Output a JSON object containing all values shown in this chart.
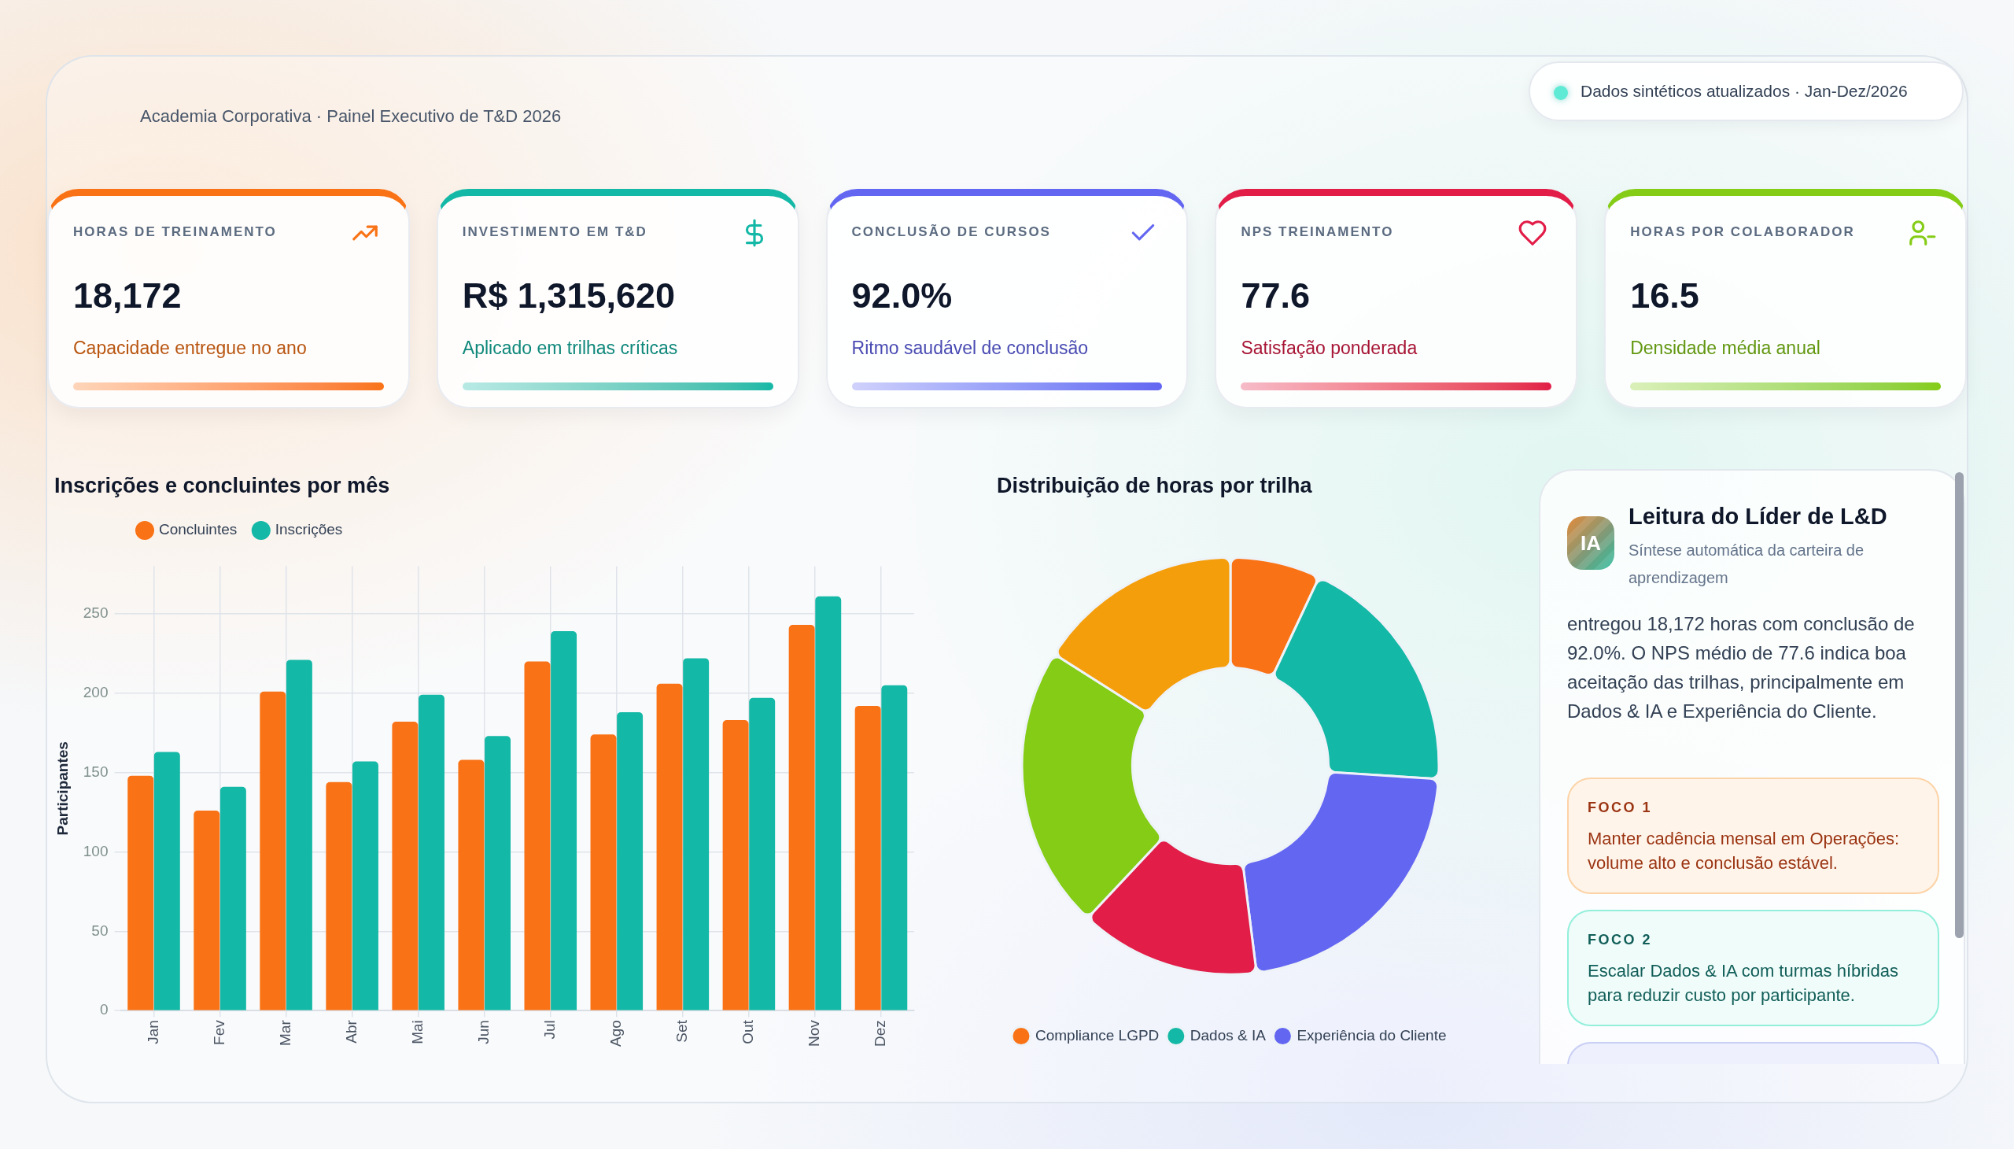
{
  "chart_data": [
    {
      "type": "other",
      "subtitle": "Academia Corporativa · Painel Executivo de T&D 2026",
      "categories": [
        "HORAS DE TREINAMENTO",
        "INVESTIMENTO EM T&D",
        "CONCLUSÃO DE CURSOS",
        "NPS TREINAMENTO",
        "HORAS POR COLABORADOR"
      ],
      "value_labels": [
        "18,172",
        "R$ 1,315,620",
        "92.0%",
        "77.6",
        "16.5"
      ],
      "colors": [
        "#f97316",
        "#14b8a6",
        "#6366f1",
        "#e11d48",
        "#84cc16"
      ],
      "annotations": [
        "Capacidade entregue no ano",
        "Aplicado em trilhas críticas",
        "Ritmo saudável de conclusão",
        "Satisfação ponderada",
        "Densidade média anual",
        "Dados sintéticos atualizados · Jan-Dez/2026"
      ]
    },
    {
      "type": "bar",
      "title": "Inscrições e concluintes por mês",
      "ylabel": "Participantes",
      "categories": [
        "Jan",
        "Fev",
        "Mar",
        "Abr",
        "Mai",
        "Jun",
        "Jul",
        "Ago",
        "Set",
        "Out",
        "Nov",
        "Dez"
      ],
      "series": [
        {
          "name": "Concluintes",
          "color": "#f97316",
          "values": [
            148,
            126,
            201,
            144,
            182,
            158,
            220,
            174,
            206,
            183,
            243,
            192
          ]
        },
        {
          "name": "Inscrições",
          "color": "#14b8a6",
          "values": [
            163,
            141,
            221,
            157,
            199,
            173,
            239,
            188,
            222,
            197,
            261,
            205
          ]
        }
      ],
      "ylim": [
        0,
        280
      ],
      "yticks": [
        0,
        50,
        100,
        150,
        200,
        250
      ],
      "grid": true,
      "legend": "top left"
    },
    {
      "type": "donut",
      "title": "Distribuição de horas por trilha",
      "categories": [
        "Compliance LGPD",
        "Dados & IA",
        "Experiência do Cliente",
        null,
        null,
        null
      ],
      "values": [
        7,
        19,
        22,
        14,
        22,
        16
      ],
      "colors": [
        "#f97316",
        "#14b8a6",
        "#6366f1",
        "#e11d48",
        "#84cc16",
        "#f59e0b"
      ],
      "legend": "bottom"
    },
    {
      "type": "other",
      "title": "Leitura do Líder de L&D",
      "subtitle": "Síntese automática da carteira de aprendizagem",
      "annotations": [
        "IA",
        "entregou 18,172 horas com conclusão de 92.0%. O NPS médio de 77.6 indica boa aceitação das trilhas, principalmente em Dados & IA e Experiência do Cliente.",
        "FOCO 1",
        "Manter cadência mensal em Operações: volume alto e conclusão estável.",
        "FOCO 2",
        "Escalar Dados & IA com turmas híbridas para reduzir custo por participante."
      ]
    }
  ]
}
